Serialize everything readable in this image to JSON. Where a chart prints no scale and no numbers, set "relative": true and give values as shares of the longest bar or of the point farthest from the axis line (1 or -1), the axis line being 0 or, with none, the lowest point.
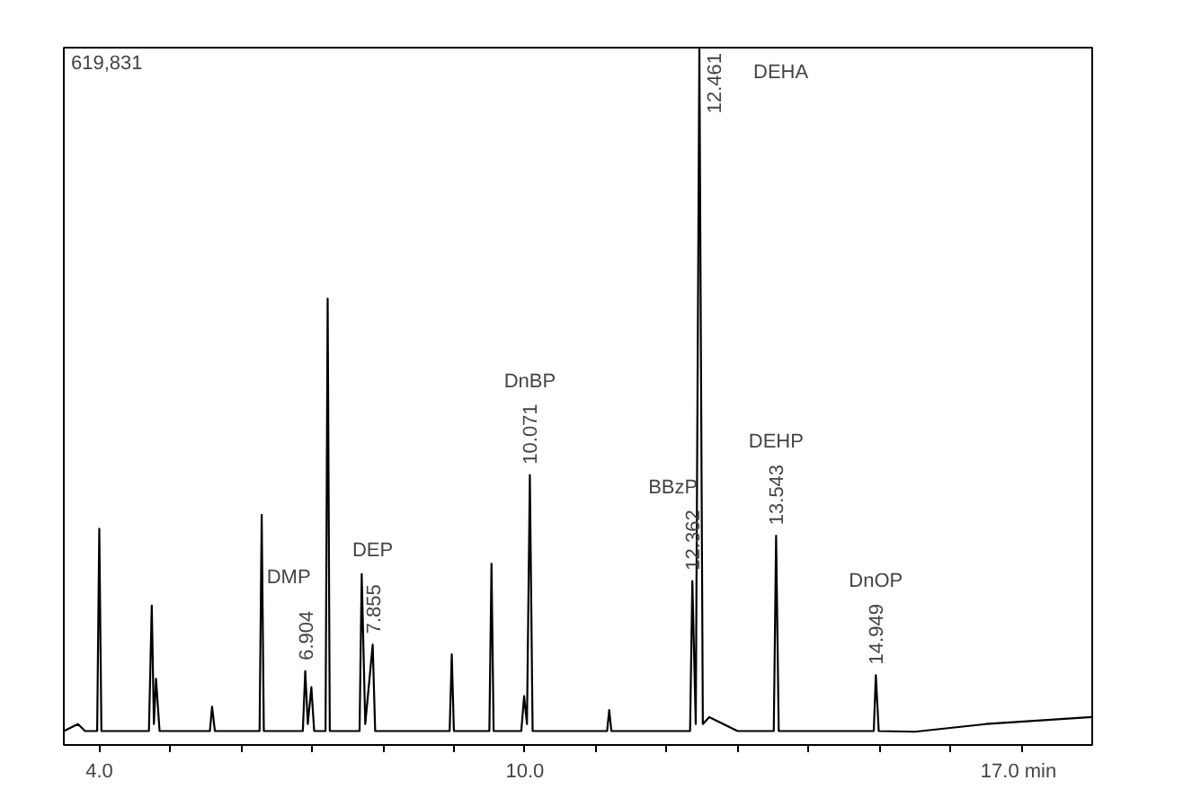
{
  "chart_data": {
    "type": "line",
    "relative": true,
    "color": "#000000",
    "grid": false,
    "marker": "none",
    "line_style": "solid",
    "xlim": [
      3.5,
      18.0
    ],
    "xticks": [
      {
        "value": 4,
        "label": "4.0"
      },
      {
        "value": 5,
        "label": null
      },
      {
        "value": 6,
        "label": null
      },
      {
        "value": 7,
        "label": null
      },
      {
        "value": 8,
        "label": null
      },
      {
        "value": 9,
        "label": null
      },
      {
        "value": 10,
        "label": "10.0"
      },
      {
        "value": 11,
        "label": null
      },
      {
        "value": 12,
        "label": null
      },
      {
        "value": 13,
        "label": null
      },
      {
        "value": 14,
        "label": null
      },
      {
        "value": 15,
        "label": null
      },
      {
        "value": 16,
        "label": null
      },
      {
        "value": 17,
        "label": "17.0  min"
      }
    ],
    "tick_labels": "x",
    "x": [
      3.5,
      3.7,
      3.8,
      3.9,
      3.97,
      4.0,
      4.03,
      4.2,
      4.7,
      4.74,
      4.77,
      4.8,
      4.85,
      5.0,
      5.56,
      5.59,
      5.63,
      5.7,
      6.0,
      6.26,
      6.29,
      6.32,
      6.5,
      6.87,
      6.904,
      6.94,
      6.99,
      7.03,
      7.19,
      7.22,
      7.25,
      7.67,
      7.7,
      7.75,
      7.855,
      7.89,
      8.3,
      8.94,
      8.97,
      9.0,
      9.5,
      9.53,
      9.56,
      9.95,
      9.99,
      10.03,
      10.071,
      10.11,
      10.5,
      11.16,
      11.19,
      11.22,
      12.0,
      12.33,
      12.362,
      12.41,
      12.461,
      12.51,
      12.6,
      13.0,
      13.51,
      13.543,
      13.58,
      14.0,
      14.92,
      14.949,
      14.99,
      15.5,
      16.5,
      18.0
    ],
    "values": [
      0.02,
      0.03,
      0.02,
      0.02,
      0.02,
      0.31,
      0.02,
      0.02,
      0.02,
      0.2,
      0.03,
      0.095,
      0.02,
      0.02,
      0.02,
      0.055,
      0.02,
      0.02,
      0.02,
      0.02,
      0.33,
      0.02,
      0.02,
      0.02,
      0.106,
      0.03,
      0.083,
      0.02,
      0.02,
      0.64,
      0.02,
      0.02,
      0.245,
      0.03,
      0.144,
      0.02,
      0.02,
      0.02,
      0.13,
      0.02,
      0.02,
      0.26,
      0.02,
      0.02,
      0.07,
      0.03,
      0.387,
      0.02,
      0.02,
      0.02,
      0.05,
      0.02,
      0.02,
      0.02,
      0.235,
      0.03,
      1.0,
      0.03,
      0.04,
      0.02,
      0.02,
      0.3,
      0.02,
      0.02,
      0.02,
      0.1,
      0.02,
      0.019,
      0.03,
      0.04
    ],
    "annotations": [
      "619,831",
      "DMP",
      {
        "text": "6.904",
        "x": 6.904,
        "y": 0.106
      },
      "DEP",
      {
        "text": "7.855",
        "x": 7.855,
        "y": 0.144
      },
      "DnBP",
      {
        "text": "10.071",
        "x": 10.071,
        "y": 0.387
      },
      "BBzP",
      {
        "text": "12.362",
        "x": 12.362,
        "y": 0.235
      },
      "DEHA",
      {
        "text": "12.461",
        "x": 12.461,
        "y": 1.0
      },
      "DEHP",
      {
        "text": "13.543",
        "x": 13.543,
        "y": 0.3
      },
      "DnOP",
      {
        "text": "14.949",
        "x": 14.949,
        "y": 0.1
      }
    ]
  }
}
